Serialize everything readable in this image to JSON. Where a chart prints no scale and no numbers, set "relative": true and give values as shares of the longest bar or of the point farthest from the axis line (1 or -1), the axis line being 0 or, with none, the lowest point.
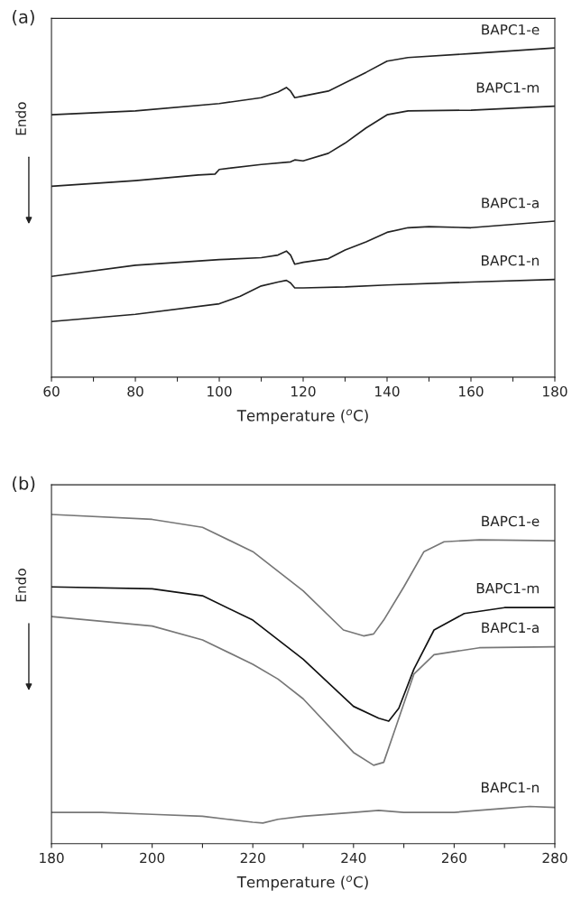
{
  "chart_data": [
    {
      "type": "line",
      "title": "(a)",
      "xlabel": "Temperature ($^{o}$C)",
      "ylabel": "Endo",
      "relative": true,
      "grid": false,
      "legend": false,
      "tick_labels": "x",
      "xlim": [
        60,
        180
      ],
      "xticks": [
        60,
        {
          "value": 70,
          "label": null
        },
        80,
        {
          "value": 90,
          "label": null
        },
        100,
        {
          "value": 110,
          "label": null
        },
        120,
        {
          "value": 130,
          "label": null
        },
        140,
        {
          "value": 150,
          "label": null
        },
        160,
        {
          "value": 170,
          "label": null
        },
        180
      ],
      "series": [
        {
          "name": "BAPC1-e",
          "color": "#222222",
          "x": [
            60,
            80,
            100,
            110,
            114,
            116,
            117,
            118,
            120,
            126,
            130,
            135,
            140,
            145,
            160,
            180
          ],
          "values": [
            0.797,
            0.809,
            0.831,
            0.849,
            0.866,
            0.88,
            0.869,
            0.849,
            0.854,
            0.869,
            0.894,
            0.926,
            0.96,
            0.971,
            0.983,
            1.0
          ]
        },
        {
          "name": "BAPC1-m",
          "color": "#222222",
          "x": [
            60,
            80,
            95,
            99,
            100,
            110,
            117,
            118,
            120,
            126,
            130,
            135,
            140,
            145,
            160,
            180
          ],
          "values": [
            0.58,
            0.597,
            0.614,
            0.617,
            0.631,
            0.646,
            0.654,
            0.66,
            0.657,
            0.68,
            0.711,
            0.757,
            0.797,
            0.809,
            0.811,
            0.823
          ]
        },
        {
          "name": "BAPC1-a",
          "color": "#222222",
          "x": [
            60,
            80,
            100,
            110,
            114,
            116,
            117,
            118,
            120,
            126,
            130,
            135,
            140,
            145,
            150,
            160,
            180
          ],
          "values": [
            0.306,
            0.34,
            0.357,
            0.363,
            0.371,
            0.383,
            0.371,
            0.343,
            0.349,
            0.36,
            0.386,
            0.411,
            0.44,
            0.454,
            0.457,
            0.454,
            0.474
          ]
        },
        {
          "name": "BAPC1-n",
          "color": "#222222",
          "x": [
            60,
            80,
            100,
            105,
            110,
            114,
            116,
            117,
            118,
            120,
            130,
            140,
            160,
            180
          ],
          "values": [
            0.169,
            0.191,
            0.223,
            0.246,
            0.277,
            0.289,
            0.294,
            0.286,
            0.271,
            0.271,
            0.274,
            0.28,
            0.289,
            0.297
          ]
        }
      ]
    },
    {
      "type": "line",
      "title": "(b)",
      "xlabel": "Temperature ($^{o}$C)",
      "ylabel": "Endo",
      "relative": true,
      "grid": false,
      "legend": false,
      "tick_labels": "x",
      "xlim": [
        180,
        280
      ],
      "xticks": [
        180,
        {
          "value": 190,
          "label": null
        },
        200,
        {
          "value": 210,
          "label": null
        },
        220,
        {
          "value": 230,
          "label": null
        },
        240,
        {
          "value": 250,
          "label": null
        },
        260,
        {
          "value": 270,
          "label": null
        },
        280
      ],
      "series": [
        {
          "name": "BAPC1-e",
          "color": "#777777",
          "x": [
            180,
            200,
            210,
            220,
            230,
            238,
            242,
            244,
            246,
            250,
            254,
            258,
            265,
            280
          ],
          "values": [
            1.0,
            0.985,
            0.961,
            0.887,
            0.768,
            0.649,
            0.631,
            0.637,
            0.679,
            0.78,
            0.887,
            0.917,
            0.923,
            0.92
          ]
        },
        {
          "name": "BAPC1-m",
          "color": "#111111",
          "x": [
            180,
            200,
            210,
            220,
            230,
            240,
            245,
            247,
            249,
            252,
            256,
            262,
            270,
            280
          ],
          "values": [
            0.78,
            0.774,
            0.753,
            0.679,
            0.56,
            0.417,
            0.381,
            0.372,
            0.411,
            0.53,
            0.649,
            0.699,
            0.717,
            0.717
          ]
        },
        {
          "name": "BAPC1-a",
          "color": "#777777",
          "x": [
            180,
            200,
            210,
            220,
            225,
            230,
            240,
            244,
            246,
            248,
            252,
            256,
            265,
            280
          ],
          "values": [
            0.69,
            0.661,
            0.619,
            0.545,
            0.5,
            0.44,
            0.277,
            0.238,
            0.247,
            0.336,
            0.515,
            0.574,
            0.595,
            0.598
          ]
        },
        {
          "name": "BAPC1-n",
          "color": "#777777",
          "x": [
            180,
            190,
            200,
            210,
            215,
            220,
            222,
            225,
            230,
            240,
            245,
            250,
            260,
            270,
            275,
            280
          ],
          "values": [
            0.095,
            0.095,
            0.089,
            0.083,
            0.074,
            0.065,
            0.0625,
            0.074,
            0.083,
            0.095,
            0.101,
            0.095,
            0.095,
            0.107,
            0.113,
            0.11
          ]
        }
      ]
    }
  ]
}
